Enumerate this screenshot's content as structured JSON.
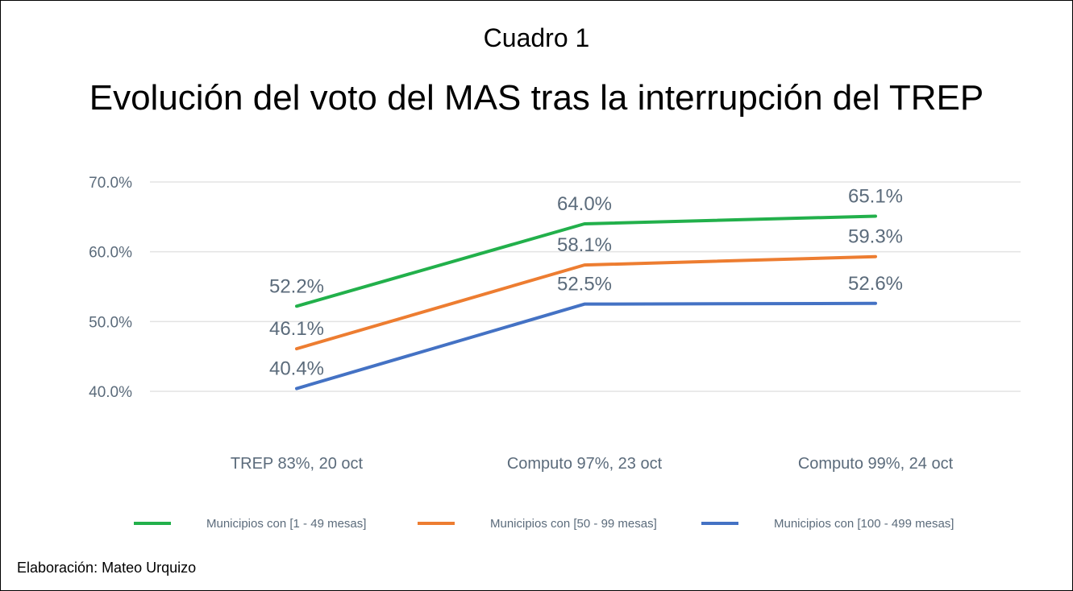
{
  "header": {
    "supertitle": "Cuadro 1",
    "title": "Evolución del voto del MAS tras la interrupción del TREP"
  },
  "footer": {
    "credit": "Elaboración: Mateo Urquizo"
  },
  "chart_data": {
    "type": "line",
    "title": "Evolución del voto del MAS tras la interrupción del TREP",
    "xlabel": "",
    "ylabel": "",
    "categories": [
      "TREP 83%, 20 oct",
      "Computo 97%, 23 oct",
      "Computo 99%, 24 oct"
    ],
    "ylim": [
      40,
      70
    ],
    "yticks": [
      40,
      50,
      60,
      70
    ],
    "ytick_labels": [
      "40.0%",
      "50.0%",
      "60.0%",
      "70.0%"
    ],
    "grid": true,
    "legend_position": "bottom",
    "series": [
      {
        "name": "Municipios con [1 - 49 mesas]",
        "color": "#22b04b",
        "values": [
          52.2,
          64.0,
          65.1
        ],
        "labels": [
          "52.2%",
          "64.0%",
          "65.1%"
        ]
      },
      {
        "name": "Municipios con [50 - 99 mesas]",
        "color": "#ed7d31",
        "values": [
          46.1,
          58.1,
          59.3
        ],
        "labels": [
          "46.1%",
          "58.1%",
          "59.3%"
        ]
      },
      {
        "name": "Municipios con [100 - 499 mesas]",
        "color": "#4472c4",
        "values": [
          40.4,
          52.5,
          52.6
        ],
        "labels": [
          "40.4%",
          "52.5%",
          "52.6%"
        ]
      }
    ]
  }
}
